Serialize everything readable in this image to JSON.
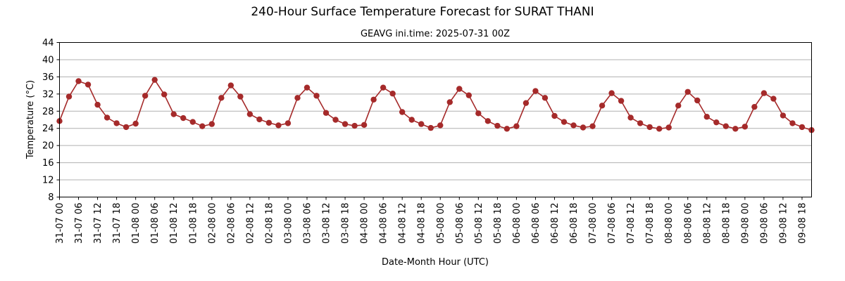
{
  "chart_data": {
    "type": "line",
    "title": "240-Hour Surface Temperature Forecast for SURAT THANI",
    "subtitle": "GEAVG ini.time: 2025-07-31 00Z",
    "xlabel": "Date-Month Hour (UTC)",
    "ylabel": "Temperature (°C)",
    "ylim": [
      8,
      44
    ],
    "y_ticks": [
      8,
      12,
      16,
      20,
      24,
      28,
      32,
      36,
      40,
      44
    ],
    "grid": "horizontal",
    "colors": {
      "series": "#a52a2a"
    },
    "x_tick_labels": [
      "31-07 00",
      "31-07 06",
      "31-07 12",
      "31-07 18",
      "01-08 00",
      "01-08 06",
      "01-08 12",
      "01-08 18",
      "02-08 00",
      "02-08 06",
      "02-08 12",
      "02-08 18",
      "03-08 00",
      "03-08 06",
      "03-08 12",
      "03-08 18",
      "04-08 00",
      "04-08 06",
      "04-08 12",
      "04-08 18",
      "05-08 00",
      "05-08 06",
      "05-08 12",
      "05-08 18",
      "06-08 00",
      "06-08 06",
      "06-08 12",
      "06-08 18",
      "07-08 00",
      "07-08 06",
      "07-08 12",
      "07-08 18",
      "08-08 00",
      "08-08 06",
      "08-08 12",
      "08-08 18",
      "09-08 00",
      "09-08 06",
      "09-08 12",
      "09-08 18"
    ],
    "x_hours_step": 3,
    "series": [
      {
        "values": [
          25.7,
          31.4,
          35.0,
          34.2,
          29.5,
          26.5,
          25.2,
          24.3,
          25.1,
          31.6,
          35.3,
          31.9,
          27.3,
          26.4,
          25.5,
          24.5,
          25.0,
          31.1,
          34.0,
          31.4,
          27.3,
          26.1,
          25.3,
          24.7,
          25.2,
          31.1,
          33.5,
          31.6,
          27.6,
          26.0,
          25.0,
          24.6,
          24.8,
          30.7,
          33.5,
          32.1,
          27.8,
          26.0,
          25.0,
          24.1,
          24.7,
          30.1,
          33.2,
          31.7,
          27.5,
          25.7,
          24.6,
          23.9,
          24.5,
          29.9,
          32.7,
          31.1,
          26.9,
          25.5,
          24.7,
          24.2,
          24.5,
          29.3,
          32.2,
          30.4,
          26.5,
          25.2,
          24.3,
          23.9,
          24.2,
          29.3,
          32.5,
          30.5,
          26.7,
          25.4,
          24.5,
          23.9,
          24.4,
          29.0,
          32.2,
          30.9,
          27.0,
          25.2,
          24.3,
          23.6
        ]
      }
    ]
  }
}
